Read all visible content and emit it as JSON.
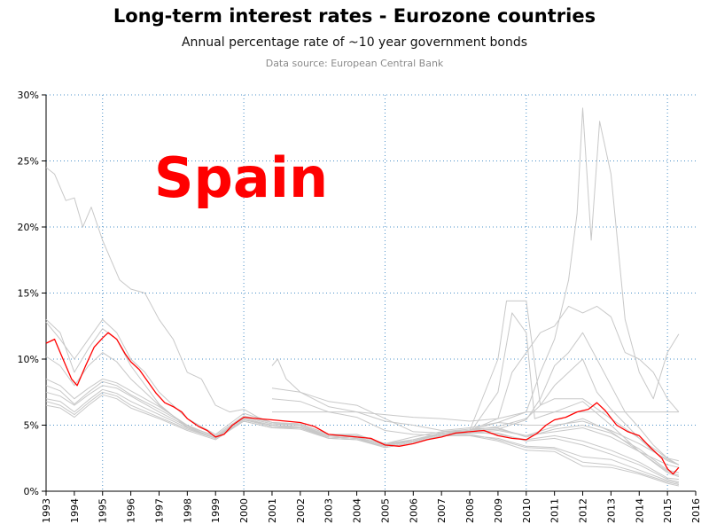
{
  "chart_data": {
    "type": "line",
    "title": "Long-term interest rates - Eurozone countries",
    "subtitle": "Annual percentage rate of ~10 year government bonds",
    "source": "Data source: European Central Bank",
    "annotation": "Spain",
    "highlight_color": "#ff0000",
    "other_color": "#c8c8c8",
    "grid": true,
    "xlim": [
      1993,
      2016
    ],
    "ylim": [
      0,
      30
    ],
    "x_ticks": [
      1993,
      1994,
      1995,
      1996,
      1997,
      1998,
      1999,
      2000,
      2001,
      2002,
      2003,
      2004,
      2005,
      2006,
      2007,
      2008,
      2009,
      2010,
      2011,
      2012,
      2013,
      2014,
      2015,
      2016
    ],
    "x_tick_labels": [
      "1993",
      "1994",
      "1995",
      "1996",
      "1997",
      "1998",
      "1999",
      "2000",
      "2001",
      "2002",
      "2003",
      "2004",
      "2005",
      "2006",
      "2007",
      "2008",
      "2009",
      "2010",
      "2011",
      "2012",
      "2013",
      "2014",
      "2015",
      "2016"
    ],
    "y_ticks": [
      0,
      5,
      10,
      15,
      20,
      25,
      30
    ],
    "y_tick_labels": [
      "0%",
      "5%",
      "10%",
      "15%",
      "20%",
      "25%",
      "30%"
    ],
    "x_grid": [
      1995,
      2000,
      2005,
      2010,
      2015
    ],
    "highlight": {
      "x": [
        1993.0,
        1993.3,
        1993.6,
        1993.9,
        1994.1,
        1994.4,
        1994.7,
        1995.0,
        1995.2,
        1995.5,
        1995.8,
        1996.0,
        1996.3,
        1996.6,
        1996.9,
        1997.2,
        1997.5,
        1997.8,
        1998.0,
        1998.4,
        1998.7,
        1999.0,
        1999.3,
        1999.6,
        2000.0,
        2000.5,
        2001.0,
        2001.5,
        2002.0,
        2002.5,
        2003.0,
        2003.5,
        2004.0,
        2004.5,
        2005.0,
        2005.5,
        2006.0,
        2006.5,
        2007.0,
        2007.5,
        2008.0,
        2008.5,
        2009.0,
        2009.5,
        2010.0,
        2010.4,
        2010.7,
        2011.0,
        2011.4,
        2011.8,
        2012.2,
        2012.5,
        2012.8,
        2013.2,
        2013.6,
        2014.0,
        2014.4,
        2014.8,
        2015.0,
        2015.2,
        2015.4
      ],
      "y": [
        11.2,
        11.5,
        10.0,
        8.5,
        8.0,
        9.5,
        10.9,
        11.6,
        12.0,
        11.5,
        10.4,
        9.8,
        9.2,
        8.3,
        7.4,
        6.7,
        6.4,
        6.0,
        5.5,
        4.9,
        4.6,
        4.1,
        4.3,
        5.0,
        5.6,
        5.5,
        5.4,
        5.3,
        5.2,
        4.9,
        4.3,
        4.2,
        4.1,
        4.0,
        3.5,
        3.4,
        3.6,
        3.9,
        4.1,
        4.4,
        4.5,
        4.6,
        4.2,
        4.0,
        3.9,
        4.4,
        5.0,
        5.4,
        5.6,
        6.0,
        6.2,
        6.7,
        6.1,
        5.0,
        4.5,
        4.2,
        3.3,
        2.5,
        1.7,
        1.3,
        1.8
      ]
    },
    "series": [
      {
        "x": [
          1993.0,
          1993.3,
          1993.7,
          1994.0,
          1994.3,
          1994.6,
          1995.0,
          1995.3,
          1995.6,
          1996.0,
          1996.5,
          1997.0,
          1997.5,
          1998.0,
          1998.5,
          1999.0,
          1999.5,
          2000.0,
          2000.5,
          2001.0,
          2002.0,
          2003.0,
          2004.0,
          2005.0,
          2006.0,
          2007.0,
          2008.0,
          2009.0,
          2009.5,
          2010.0,
          2010.5,
          2011.0,
          2011.5,
          2012.0,
          2012.5,
          2013.0,
          2013.5,
          2014.0,
          2014.5,
          2015.0,
          2015.4
        ],
        "y": [
          24.5,
          24.0,
          22.0,
          22.2,
          20.0,
          21.5,
          19.0,
          17.5,
          16.0,
          15.3,
          15.0,
          13.0,
          11.5,
          9.0,
          8.5,
          6.5,
          6.0,
          6.2,
          5.6,
          5.2,
          5.0,
          4.1,
          4.0,
          3.6,
          3.8,
          4.4,
          4.6,
          5.5,
          9.0,
          10.5,
          12.0,
          12.5,
          14.0,
          13.5,
          14.0,
          13.2,
          10.5,
          10.0,
          9.0,
          7.0,
          6.0
        ]
      },
      {
        "x": [
          1993.0,
          1993.5,
          1994.0,
          1994.5,
          1995.0,
          1995.5,
          1996.0,
          1996.5,
          1997.0,
          1998.0,
          1999.0,
          2000.0,
          2001.0,
          2002.0,
          2003.0,
          2004.0,
          2005.0,
          2006.0,
          2007.0,
          2008.0,
          2009.0,
          2010.0,
          2010.5,
          2011.0,
          2011.5,
          2011.8,
          2012.0,
          2012.3,
          2012.6,
          2013.0,
          2013.5,
          2014.0,
          2014.5,
          2015.0,
          2015.4
        ],
        "y": [
          12.8,
          11.5,
          10.0,
          11.5,
          13.0,
          12.0,
          10.0,
          9.0,
          7.5,
          5.5,
          4.3,
          5.9,
          5.2,
          5.1,
          4.3,
          4.3,
          3.6,
          4.1,
          4.5,
          4.6,
          5.2,
          6.0,
          9.0,
          11.5,
          16.0,
          21.0,
          29.0,
          19.0,
          28.0,
          24.0,
          13.0,
          9.0,
          7.0,
          10.5,
          11.9
        ]
      },
      {
        "x": [
          1993.0,
          1993.5,
          1994.0,
          1994.5,
          1995.0,
          1995.5,
          1996.0,
          1997.0,
          1998.0,
          1999.0,
          2000.0,
          2001.0,
          2002.0,
          2003.0,
          2004.0,
          2005.0,
          2006.0,
          2007.0,
          2008.0,
          2009.0,
          2010.0,
          2010.5,
          2011.0,
          2011.5,
          2012.0,
          2012.5,
          2013.0,
          2013.5,
          2014.0,
          2014.5,
          2015.0,
          2015.4
        ],
        "y": [
          13.0,
          12.0,
          9.0,
          10.8,
          12.3,
          11.5,
          9.5,
          6.6,
          4.8,
          4.0,
          5.6,
          5.1,
          5.0,
          4.2,
          4.1,
          3.5,
          3.8,
          4.3,
          4.5,
          4.7,
          5.4,
          7.0,
          9.5,
          10.5,
          12.0,
          10.0,
          8.0,
          6.0,
          4.8,
          3.5,
          2.5,
          2.3
        ]
      },
      {
        "x": [
          1993.0,
          1993.5,
          1994.0,
          1994.5,
          1995.0,
          1995.5,
          1996.0,
          1997.0,
          1998.0,
          1999.0,
          2000.0,
          2001.0,
          2002.0,
          2003.0,
          2004.0,
          2005.0,
          2006.0,
          2007.0,
          2008.0,
          2009.0,
          2010.0,
          2010.5,
          2011.0,
          2011.5,
          2012.0,
          2012.5,
          2013.0,
          2014.0,
          2014.5,
          2015.0,
          2015.4
        ],
        "y": [
          10.2,
          9.5,
          8.0,
          9.5,
          10.5,
          9.8,
          8.5,
          6.5,
          4.9,
          4.2,
          5.7,
          5.2,
          5.1,
          4.3,
          4.2,
          3.6,
          3.9,
          4.4,
          4.6,
          4.9,
          5.5,
          6.5,
          8.0,
          9.0,
          10.0,
          7.5,
          6.2,
          4.0,
          3.0,
          2.3,
          2.0
        ]
      },
      {
        "x": [
          2001.0,
          2001.2,
          2001.5,
          2002.0,
          2003.0,
          2004.0,
          2005.0,
          2006.0,
          2007.0,
          2008.0,
          2009.0,
          2010.0,
          2011.0,
          2012.0,
          2013.0,
          2014.0,
          2015.0,
          2015.4
        ],
        "y": [
          9.5,
          10.0,
          8.5,
          7.5,
          6.4,
          6.0,
          5.3,
          5.0,
          4.6,
          4.8,
          5.2,
          5.0,
          5.0,
          5.3,
          4.6,
          3.6,
          2.4,
          2.0
        ]
      },
      {
        "x": [
          2001.0,
          2002.0,
          2003.0,
          2004.0,
          2005.0,
          2006.0,
          2007.0,
          2008.0,
          2009.0,
          2009.3,
          2010.0,
          2010.5,
          2011.0,
          2012.0,
          2013.0,
          2014.0,
          2015.0,
          2015.4
        ],
        "y": [
          7.8,
          7.5,
          6.8,
          6.5,
          5.5,
          4.5,
          4.4,
          4.6,
          10.0,
          14.4,
          14.4,
          6.5,
          7.0,
          7.0,
          5.5,
          4.0,
          2.5,
          2.0
        ]
      },
      {
        "x": [
          2001.0,
          2002.0,
          2003.0,
          2004.0,
          2005.0,
          2006.0,
          2007.0,
          2008.0,
          2009.0,
          2009.5,
          2010.0,
          2010.3,
          2011.0,
          2012.0,
          2013.0,
          2014.0,
          2015.0,
          2015.4
        ],
        "y": [
          7.0,
          6.8,
          6.0,
          5.6,
          4.6,
          4.3,
          4.2,
          4.4,
          7.5,
          13.5,
          12.0,
          5.5,
          6.0,
          6.8,
          5.0,
          3.0,
          2.0,
          1.8
        ]
      },
      {
        "x": [
          2001.0,
          2002.0,
          2003.0,
          2004.0,
          2005.0,
          2006.0,
          2007.0,
          2008.0,
          2009.0,
          2010.0,
          2011.0,
          2012.0,
          2013.0,
          2014.0,
          2015.0,
          2015.4
        ],
        "y": [
          6.0,
          6.0,
          6.0,
          6.0,
          5.8,
          5.6,
          5.5,
          5.3,
          5.5,
          6.0,
          6.0,
          6.0,
          6.0,
          6.0,
          6.0,
          6.0
        ]
      },
      {
        "x": [
          1993.0,
          1993.5,
          1994.0,
          1994.5,
          1995.0,
          1995.5,
          1996.0,
          1997.0,
          1998.0,
          1999.0,
          2000.0,
          2001.0,
          2002.0,
          2003.0,
          2004.0,
          2005.0,
          2006.0,
          2007.0,
          2008.0,
          2009.0,
          2010.0,
          2011.0,
          2012.0,
          2013.0,
          2014.0,
          2015.0,
          2015.4
        ],
        "y": [
          8.5,
          8.0,
          7.0,
          7.8,
          8.5,
          8.2,
          7.6,
          6.4,
          5.0,
          4.1,
          5.5,
          5.0,
          4.9,
          4.1,
          4.0,
          3.4,
          3.8,
          4.3,
          4.4,
          4.6,
          4.2,
          4.9,
          5.5,
          4.5,
          3.0,
          1.5,
          1.2
        ]
      },
      {
        "x": [
          1993.0,
          1993.5,
          1994.0,
          1994.5,
          1995.0,
          1995.5,
          1996.0,
          1997.0,
          1998.0,
          1999.0,
          2000.0,
          2001.0,
          2002.0,
          2003.0,
          2004.0,
          2005.0,
          2006.0,
          2007.0,
          2008.0,
          2009.0,
          2010.0,
          2011.0,
          2012.0,
          2013.0,
          2014.0,
          2015.0,
          2015.4
        ],
        "y": [
          7.5,
          7.2,
          6.5,
          7.3,
          8.0,
          7.8,
          7.2,
          6.0,
          4.9,
          4.0,
          5.4,
          5.0,
          4.8,
          4.0,
          3.9,
          3.4,
          3.8,
          4.3,
          4.4,
          4.4,
          3.8,
          4.0,
          3.5,
          2.8,
          2.0,
          0.9,
          0.7
        ]
      },
      {
        "x": [
          1993.0,
          1993.5,
          1994.0,
          1994.5,
          1995.0,
          1995.5,
          1996.0,
          1997.0,
          1998.0,
          1999.0,
          2000.0,
          2001.0,
          2002.0,
          2003.0,
          2004.0,
          2005.0,
          2006.0,
          2007.0,
          2008.0,
          2009.0,
          2010.0,
          2011.0,
          2012.0,
          2013.0,
          2014.0,
          2015.0,
          2015.4
        ],
        "y": [
          7.0,
          6.8,
          6.0,
          6.9,
          7.7,
          7.4,
          6.8,
          5.8,
          4.8,
          4.0,
          5.4,
          4.9,
          4.8,
          4.1,
          4.0,
          3.3,
          3.7,
          4.2,
          4.2,
          4.0,
          3.4,
          3.3,
          2.6,
          2.4,
          1.6,
          0.8,
          0.6
        ]
      },
      {
        "x": [
          1993.0,
          1993.5,
          1994.0,
          1994.5,
          1995.0,
          1995.5,
          1996.0,
          1997.0,
          1998.0,
          1999.0,
          2000.0,
          2001.0,
          2002.0,
          2003.0,
          2004.0,
          2005.0,
          2006.0,
          2007.0,
          2008.0,
          2009.0,
          2010.0,
          2011.0,
          2012.0,
          2013.0,
          2014.0,
          2015.0,
          2015.4
        ],
        "y": [
          6.8,
          6.5,
          5.8,
          6.7,
          7.5,
          7.2,
          6.5,
          5.6,
          4.7,
          4.0,
          5.3,
          4.8,
          4.7,
          4.0,
          3.9,
          3.3,
          3.7,
          4.2,
          4.2,
          3.8,
          3.1,
          3.0,
          1.9,
          1.8,
          1.3,
          0.6,
          0.4
        ]
      },
      {
        "x": [
          1993.0,
          1993.5,
          1994.0,
          1994.5,
          1995.0,
          1995.5,
          1996.0,
          1997.0,
          1998.0,
          1999.0,
          2000.0,
          2001.0,
          2002.0,
          2003.0,
          2004.0,
          2005.0,
          2006.0,
          2007.0,
          2008.0,
          2009.0,
          2010.0,
          2011.0,
          2012.0,
          2013.0,
          2014.0,
          2015.0,
          2015.4
        ],
        "y": [
          6.5,
          6.3,
          5.6,
          6.5,
          7.3,
          7.0,
          6.3,
          5.5,
          4.6,
          3.9,
          5.3,
          4.8,
          4.8,
          4.1,
          4.0,
          3.4,
          3.8,
          4.3,
          4.3,
          3.9,
          3.3,
          3.2,
          2.2,
          2.0,
          1.4,
          0.7,
          0.5
        ]
      },
      {
        "x": [
          1993.0,
          1993.5,
          1994.0,
          1994.5,
          1995.0,
          1995.5,
          1996.0,
          1997.0,
          1998.0,
          1999.0,
          2000.0,
          2001.0,
          2002.0,
          2003.0,
          2004.0,
          2005.0,
          2006.0,
          2007.0,
          2008.0,
          2009.0,
          2010.0,
          2011.0,
          2012.0,
          2013.0,
          2014.0,
          2015.0,
          2015.4
        ],
        "y": [
          8.0,
          7.6,
          6.6,
          7.5,
          8.3,
          8.0,
          7.3,
          6.2,
          5.0,
          4.1,
          5.6,
          5.1,
          5.0,
          4.2,
          4.1,
          3.5,
          3.9,
          4.4,
          4.5,
          4.3,
          3.9,
          4.2,
          3.8,
          3.1,
          2.2,
          1.0,
          0.9
        ]
      },
      {
        "x": [
          2007.0,
          2008.0,
          2009.0,
          2010.0,
          2011.0,
          2012.0,
          2013.0,
          2014.0,
          2015.0,
          2015.4
        ],
        "y": [
          4.5,
          4.7,
          4.8,
          4.1,
          4.7,
          5.0,
          4.4,
          3.2,
          1.6,
          1.4
        ]
      },
      {
        "x": [
          2008.0,
          2009.0,
          2010.0,
          2011.0,
          2012.0,
          2013.0,
          2014.0,
          2015.0,
          2015.4
        ],
        "y": [
          4.6,
          4.7,
          4.2,
          4.5,
          4.8,
          4.1,
          3.0,
          1.4,
          1.1
        ]
      }
    ]
  }
}
